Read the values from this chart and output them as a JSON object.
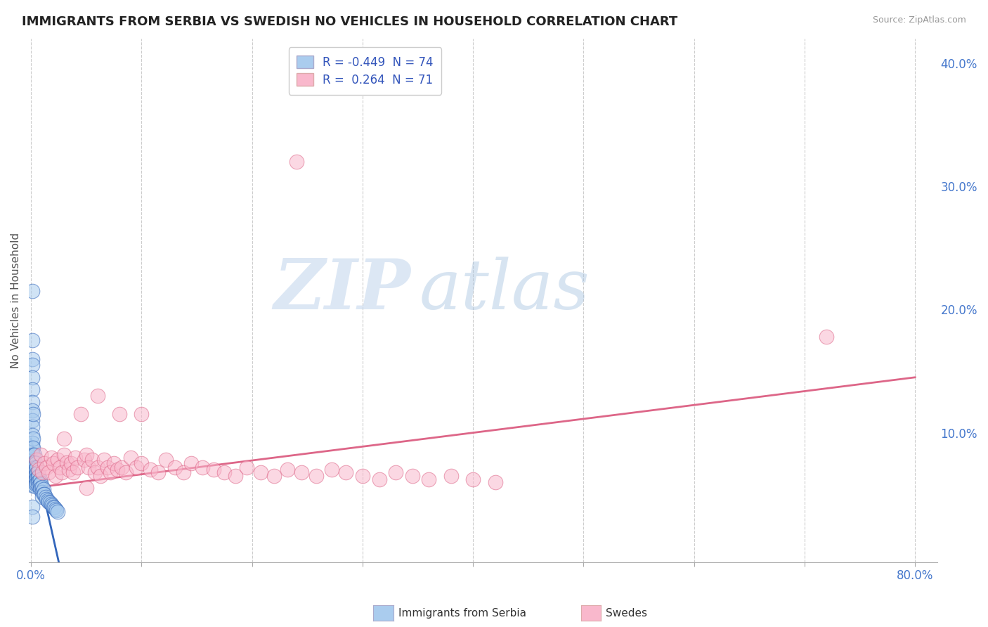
{
  "title": "IMMIGRANTS FROM SERBIA VS SWEDISH NO VEHICLES IN HOUSEHOLD CORRELATION CHART",
  "source": "Source: ZipAtlas.com",
  "ylabel": "No Vehicles in Household",
  "legend_r1_label": "R = -0.449  N = 74",
  "legend_r2_label": "R =  0.264  N = 71",
  "color_serbia": "#aaccee",
  "color_swedes": "#f9b8cc",
  "line_color_serbia": "#3366bb",
  "line_color_swedes": "#dd6688",
  "watermark_zip": "ZIP",
  "watermark_atlas": "atlas",
  "watermark_color_zip": "#c5d8ee",
  "watermark_color_atlas": "#a8c4e0",
  "background_color": "#ffffff",
  "plot_bg_color": "#ffffff",
  "xlim": [
    -0.002,
    0.82
  ],
  "ylim": [
    -0.005,
    0.42
  ],
  "grid_color": "#cccccc",
  "tick_color": "#4477cc",
  "serbia_line_x": [
    0.0,
    0.025
  ],
  "serbia_line_y": [
    0.095,
    -0.005
  ],
  "swedes_line_x": [
    0.0,
    0.8
  ],
  "swedes_line_y": [
    0.055,
    0.145
  ],
  "serbia_x": [
    0.001,
    0.001,
    0.001,
    0.001,
    0.001,
    0.001,
    0.001,
    0.001,
    0.001,
    0.001,
    0.001,
    0.001,
    0.001,
    0.001,
    0.001,
    0.001,
    0.001,
    0.002,
    0.002,
    0.002,
    0.002,
    0.002,
    0.002,
    0.002,
    0.002,
    0.002,
    0.002,
    0.003,
    0.003,
    0.003,
    0.003,
    0.003,
    0.003,
    0.003,
    0.004,
    0.004,
    0.004,
    0.004,
    0.004,
    0.005,
    0.005,
    0.005,
    0.005,
    0.006,
    0.006,
    0.006,
    0.007,
    0.007,
    0.007,
    0.008,
    0.008,
    0.008,
    0.009,
    0.009,
    0.01,
    0.01,
    0.01,
    0.011,
    0.011,
    0.012,
    0.013,
    0.014,
    0.015,
    0.016,
    0.017,
    0.018,
    0.019,
    0.02,
    0.021,
    0.022,
    0.023,
    0.024,
    0.001,
    0.001
  ],
  "serbia_y": [
    0.215,
    0.175,
    0.16,
    0.155,
    0.145,
    0.135,
    0.125,
    0.118,
    0.11,
    0.105,
    0.098,
    0.092,
    0.088,
    0.082,
    0.078,
    0.074,
    0.07,
    0.115,
    0.095,
    0.088,
    0.082,
    0.076,
    0.072,
    0.068,
    0.064,
    0.06,
    0.057,
    0.082,
    0.076,
    0.072,
    0.068,
    0.064,
    0.06,
    0.057,
    0.075,
    0.07,
    0.066,
    0.062,
    0.058,
    0.072,
    0.067,
    0.063,
    0.059,
    0.068,
    0.064,
    0.06,
    0.065,
    0.061,
    0.057,
    0.062,
    0.058,
    0.054,
    0.059,
    0.055,
    0.056,
    0.052,
    0.048,
    0.054,
    0.05,
    0.05,
    0.048,
    0.046,
    0.045,
    0.044,
    0.043,
    0.042,
    0.041,
    0.04,
    0.039,
    0.038,
    0.037,
    0.036,
    0.04,
    0.032
  ],
  "swedes_x": [
    0.005,
    0.007,
    0.009,
    0.01,
    0.012,
    0.014,
    0.016,
    0.018,
    0.02,
    0.022,
    0.024,
    0.026,
    0.028,
    0.03,
    0.032,
    0.034,
    0.036,
    0.038,
    0.04,
    0.042,
    0.045,
    0.048,
    0.05,
    0.052,
    0.055,
    0.058,
    0.06,
    0.063,
    0.066,
    0.069,
    0.072,
    0.075,
    0.078,
    0.082,
    0.086,
    0.09,
    0.095,
    0.1,
    0.108,
    0.115,
    0.122,
    0.13,
    0.138,
    0.145,
    0.155,
    0.165,
    0.175,
    0.185,
    0.195,
    0.208,
    0.22,
    0.232,
    0.245,
    0.258,
    0.272,
    0.285,
    0.3,
    0.315,
    0.33,
    0.345,
    0.36,
    0.38,
    0.4,
    0.42,
    0.24,
    0.72,
    0.06,
    0.08,
    0.1,
    0.03,
    0.05
  ],
  "swedes_y": [
    0.078,
    0.07,
    0.082,
    0.068,
    0.075,
    0.072,
    0.068,
    0.08,
    0.075,
    0.065,
    0.078,
    0.072,
    0.068,
    0.082,
    0.076,
    0.07,
    0.075,
    0.068,
    0.08,
    0.072,
    0.115,
    0.078,
    0.082,
    0.072,
    0.078,
    0.068,
    0.072,
    0.065,
    0.078,
    0.072,
    0.068,
    0.075,
    0.07,
    0.072,
    0.068,
    0.08,
    0.072,
    0.075,
    0.07,
    0.068,
    0.078,
    0.072,
    0.068,
    0.075,
    0.072,
    0.07,
    0.068,
    0.065,
    0.072,
    0.068,
    0.065,
    0.07,
    0.068,
    0.065,
    0.07,
    0.068,
    0.065,
    0.062,
    0.068,
    0.065,
    0.062,
    0.065,
    0.062,
    0.06,
    0.32,
    0.178,
    0.13,
    0.115,
    0.115,
    0.095,
    0.055
  ]
}
